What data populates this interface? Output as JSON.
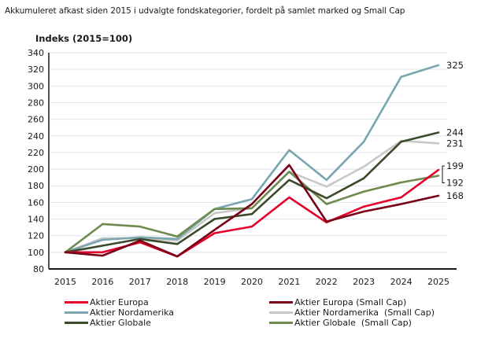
{
  "title": "Akkumuleret afkast siden 2015 i udvalgte fondskategorier, fordelt på samlet marked og Small Cap",
  "chart_data": {
    "type": "line",
    "title": "Akkumuleret afkast siden 2015 i udvalgte fondskategorier, fordelt på samlet marked og Small Cap",
    "ylabel": "Indeks (2015=100)",
    "xlabel": "",
    "x": [
      "2015",
      "2016",
      "2017",
      "2018",
      "2019",
      "2020",
      "2021",
      "2022",
      "2023",
      "2024",
      "2025"
    ],
    "ylim": [
      80,
      340
    ],
    "yticks": [
      80,
      100,
      120,
      140,
      160,
      180,
      200,
      220,
      240,
      260,
      280,
      300,
      320,
      340
    ],
    "grid": true,
    "legend_position": "bottom",
    "series": [
      {
        "name": "Aktier Europa",
        "color": "#e4002b",
        "values": [
          100,
          100,
          112,
          95,
          123,
          131,
          166,
          136,
          155,
          166,
          199
        ],
        "end_label": "199"
      },
      {
        "name": "Aktier Europa (Small Cap)",
        "color": "#7a0019",
        "values": [
          100,
          96,
          114,
          95,
          127,
          158,
          205,
          137,
          149,
          158,
          168
        ],
        "end_label": "168"
      },
      {
        "name": "Aktier Nordamerika",
        "color": "#7aa6b0",
        "values": [
          100,
          115,
          118,
          116,
          152,
          164,
          223,
          187,
          233,
          311,
          325
        ],
        "end_label": "325"
      },
      {
        "name": "Aktier Nordamerika  (Small Cap)",
        "color": "#c8c8c8",
        "values": [
          100,
          117,
          117,
          114,
          147,
          153,
          197,
          179,
          203,
          234,
          231
        ],
        "end_label": "231"
      },
      {
        "name": "Aktier Globale",
        "color": "#3a4a2a",
        "values": [
          100,
          108,
          116,
          110,
          140,
          146,
          187,
          165,
          189,
          233,
          244
        ],
        "end_label": "244"
      },
      {
        "name": "Aktier Globale  (Small Cap)",
        "color": "#6e8b4e",
        "values": [
          100,
          134,
          131,
          119,
          152,
          153,
          197,
          158,
          173,
          184,
          192
        ],
        "end_label": "192"
      }
    ]
  },
  "legend": [
    {
      "label": "Aktier Europa",
      "color": "#e4002b"
    },
    {
      "label": "Aktier Europa (Small Cap)",
      "color": "#7a0019"
    },
    {
      "label": "Aktier Nordamerika",
      "color": "#7aa6b0"
    },
    {
      "label": "Aktier Nordamerika  (Small Cap)",
      "color": "#c8c8c8"
    },
    {
      "label": "Aktier Globale",
      "color": "#3a4a2a"
    },
    {
      "label": "Aktier Globale  (Small Cap)",
      "color": "#6e8b4e"
    }
  ]
}
